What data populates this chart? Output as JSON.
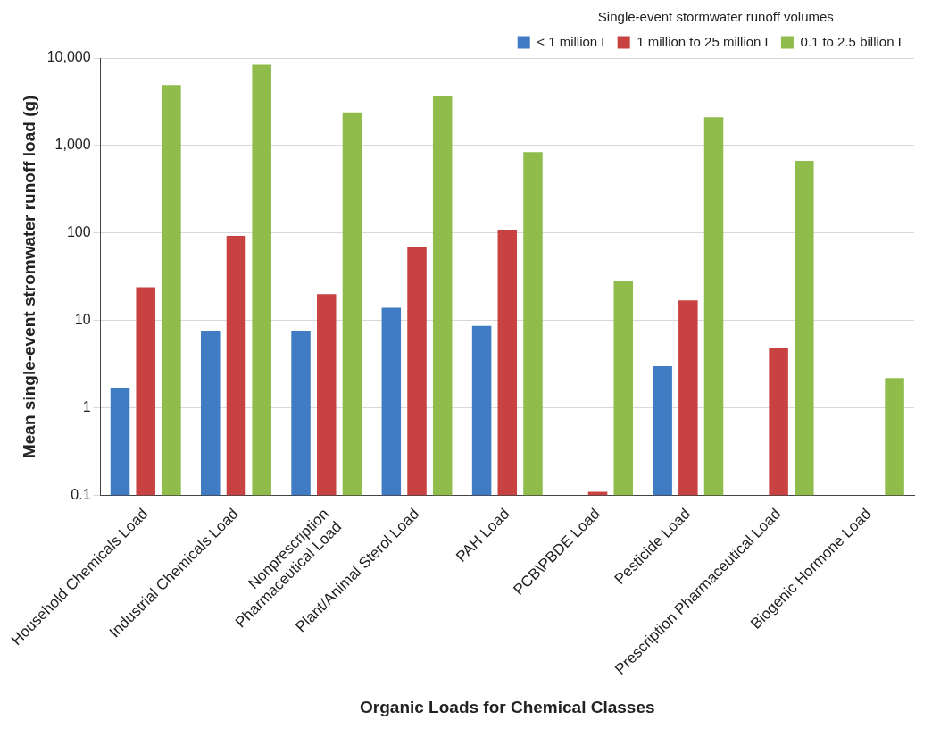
{
  "chart_data": {
    "type": "bar",
    "xlabel": "Organic Loads for Chemical Classes",
    "ylabel": "Mean single-event stromwater runoff load (g)",
    "legend_title": "Single-event stormwater runoff volumes",
    "categories": [
      "Household Chemicals Load",
      "Industrial Chemicals Load",
      "Nonprescription\nPharmaceutical Load",
      "Plant/Animal Sterol Load",
      "PAH Load",
      "PCB\\PBDE Load",
      "Pesticide Load",
      "Prescription Pharmaceutical Load",
      "Biogenic Hormone Load"
    ],
    "series": [
      {
        "name": "< 1 million L",
        "color": "#3f7cc4",
        "values": [
          1.7,
          7.7,
          7.7,
          14,
          8.7,
          null,
          3.0,
          null,
          null
        ]
      },
      {
        "name": "1 million to 25 million L",
        "color": "#c84242",
        "values": [
          24,
          93,
          20,
          70,
          109,
          0.11,
          17,
          4.9,
          null
        ]
      },
      {
        "name": "0.1 to 2.5 billion L",
        "color": "#8fbc4b",
        "values": [
          4900,
          8400,
          2400,
          3700,
          840,
          28,
          2100,
          670,
          2.2
        ]
      }
    ],
    "log": true,
    "ylim": [
      0.1,
      10000
    ],
    "yticks": [
      0.1,
      1,
      10,
      100,
      {
        "value": 1000,
        "label": "1,000"
      },
      {
        "value": 10000,
        "label": "10,000"
      }
    ],
    "grid": "y",
    "legend": "top right"
  }
}
